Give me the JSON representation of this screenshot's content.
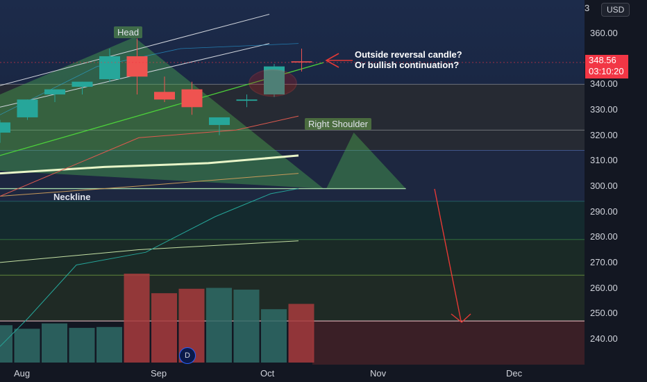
{
  "chart_data": {
    "type": "candlestick",
    "symbol_currency": "USD",
    "top_partial_price": "3",
    "price_axis_ticks": [
      "360.00",
      "350.00",
      "340.00",
      "330.00",
      "320.00",
      "310.00",
      "300.00",
      "290.00",
      "280.00",
      "270.00",
      "260.00",
      "250.00",
      "240.00"
    ],
    "ylim": [
      232,
      372
    ],
    "time_labels": [
      "Aug",
      "Sep",
      "Oct",
      "Nov",
      "Dec"
    ],
    "time_label_index": [
      1,
      6,
      10,
      14,
      19
    ],
    "last_price": "348.56",
    "countdown": "03:10:20",
    "interval_badge": "D",
    "candles": [
      {
        "i": 0,
        "o": 321,
        "h": 326,
        "l": 317,
        "c": 325
      },
      {
        "i": 1,
        "o": 327,
        "h": 334,
        "l": 326,
        "c": 334
      },
      {
        "i": 2,
        "o": 336,
        "h": 338,
        "l": 333,
        "c": 338
      },
      {
        "i": 3,
        "o": 339,
        "h": 341,
        "l": 336,
        "c": 341
      },
      {
        "i": 4,
        "o": 342,
        "h": 354,
        "l": 341,
        "c": 351
      },
      {
        "i": 5,
        "o": 351,
        "h": 358,
        "l": 336,
        "c": 343
      },
      {
        "i": 6,
        "o": 337,
        "h": 343,
        "l": 333,
        "c": 334
      },
      {
        "i": 7,
        "o": 338,
        "h": 341,
        "l": 328,
        "c": 331
      },
      {
        "i": 8,
        "o": 324,
        "h": 327,
        "l": 320,
        "c": 327
      },
      {
        "i": 9,
        "o": 333.5,
        "h": 336,
        "l": 331,
        "c": 334
      },
      {
        "i": 10,
        "o": 336,
        "h": 348,
        "l": 335,
        "c": 347
      },
      {
        "i": 11,
        "o": 349,
        "h": 354,
        "l": 345,
        "c": 348.56
      }
    ],
    "volume": [
      {
        "i": 0,
        "v": 0.42,
        "up": true
      },
      {
        "i": 1,
        "v": 0.38,
        "up": true
      },
      {
        "i": 2,
        "v": 0.44,
        "up": true
      },
      {
        "i": 3,
        "v": 0.39,
        "up": true
      },
      {
        "i": 4,
        "v": 0.4,
        "up": true
      },
      {
        "i": 5,
        "v": 1.0,
        "up": false
      },
      {
        "i": 6,
        "v": 0.78,
        "up": false
      },
      {
        "i": 7,
        "v": 0.83,
        "up": false
      },
      {
        "i": 8,
        "v": 0.84,
        "up": true
      },
      {
        "i": 9,
        "v": 0.82,
        "up": true
      },
      {
        "i": 10,
        "v": 0.6,
        "up": true
      },
      {
        "i": 11,
        "v": 0.66,
        "up": false
      }
    ],
    "horizontal_levels": [
      340,
      322,
      314,
      294,
      279,
      265
    ],
    "target_price": 247,
    "neckline_price": 299
  },
  "annotations": {
    "head": "Head",
    "right_shoulder": "Right Shoulder",
    "neckline": "Neckline",
    "callout": [
      "Outside reversal candle?",
      "Or bullish continuation?"
    ]
  },
  "colors": {
    "background": "#131722",
    "up": "#26a69a",
    "down": "#ef5350",
    "pattern_fill": "#4caf50",
    "target_zone": "#3a1f26",
    "trendline": "#4cd13a",
    "arrow": "#e53935"
  }
}
